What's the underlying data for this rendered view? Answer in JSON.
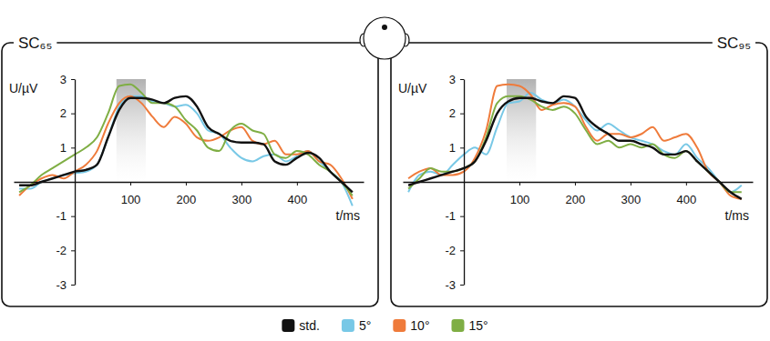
{
  "chart_data": [
    {
      "type": "line",
      "title": "SC₆₅",
      "x_label": "t/ms",
      "y_label": "U/µV",
      "legend": "bottom",
      "xlim": [
        -110,
        520
      ],
      "xticks": [
        100,
        200,
        300,
        400
      ],
      "ylim": [
        -3,
        3
      ],
      "yticks": [
        -3,
        -2,
        -1,
        1,
        2,
        3
      ],
      "highlight": [
        75,
        128
      ],
      "x": [
        -100,
        -80,
        -60,
        -40,
        -20,
        0,
        20,
        40,
        60,
        80,
        100,
        120,
        140,
        160,
        180,
        200,
        220,
        240,
        260,
        280,
        300,
        320,
        340,
        360,
        380,
        400,
        420,
        440,
        460,
        480,
        500
      ],
      "series": [
        {
          "name": "std.",
          "color": "#111111",
          "values": [
            -0.1,
            -0.1,
            0.0,
            0.1,
            0.2,
            0.3,
            0.35,
            0.5,
            1.3,
            2.1,
            2.45,
            2.45,
            2.4,
            2.3,
            2.45,
            2.5,
            2.2,
            1.6,
            1.4,
            1.2,
            1.15,
            1.15,
            1.1,
            0.6,
            0.5,
            0.7,
            0.85,
            0.7,
            0.3,
            0.0,
            -0.3
          ]
        },
        {
          "name": "5°",
          "color": "#78c8e6",
          "values": [
            -0.2,
            -0.2,
            0.0,
            0.1,
            0.2,
            0.25,
            0.3,
            0.5,
            1.3,
            2.2,
            2.5,
            2.5,
            2.35,
            2.3,
            2.2,
            2.25,
            2.0,
            1.5,
            1.4,
            1.0,
            0.7,
            0.6,
            0.75,
            0.8,
            0.6,
            0.75,
            0.9,
            0.6,
            0.3,
            0.0,
            -0.7
          ]
        },
        {
          "name": "10°",
          "color": "#ef7b3b",
          "values": [
            -0.4,
            -0.1,
            0.1,
            0.2,
            0.1,
            0.3,
            0.5,
            0.9,
            1.7,
            2.3,
            2.5,
            2.3,
            1.9,
            1.6,
            1.9,
            1.7,
            1.3,
            1.2,
            1.3,
            1.5,
            1.6,
            1.2,
            1.1,
            1.2,
            0.8,
            0.8,
            0.9,
            0.6,
            0.5,
            0.1,
            -0.5
          ]
        },
        {
          "name": "15°",
          "color": "#7fae44",
          "values": [
            -0.3,
            -0.1,
            0.2,
            0.4,
            0.6,
            0.8,
            1.0,
            1.3,
            2.0,
            2.8,
            2.85,
            2.6,
            2.3,
            2.3,
            2.2,
            1.8,
            1.5,
            1.0,
            0.9,
            1.5,
            1.7,
            1.5,
            1.4,
            0.8,
            0.7,
            0.9,
            0.8,
            0.5,
            0.3,
            0.0,
            -0.4
          ]
        }
      ]
    },
    {
      "type": "line",
      "title": "SC₉₅",
      "x_label": "t/ms",
      "y_label": "U/µV",
      "xlim": [
        -110,
        520
      ],
      "xticks": [
        100,
        200,
        300,
        400
      ],
      "ylim": [
        -3,
        3
      ],
      "yticks": [
        -3,
        -2,
        -1,
        1,
        2,
        3
      ],
      "highlight": [
        77,
        130
      ],
      "x": [
        -100,
        -80,
        -60,
        -40,
        -20,
        0,
        20,
        40,
        60,
        80,
        100,
        120,
        140,
        160,
        180,
        200,
        220,
        240,
        260,
        280,
        300,
        320,
        340,
        360,
        380,
        400,
        420,
        440,
        460,
        480,
        500
      ],
      "series": [
        {
          "color": "#111111",
          "values": [
            -0.1,
            0.0,
            0.1,
            0.2,
            0.3,
            0.4,
            0.6,
            1.2,
            2.0,
            2.35,
            2.45,
            2.45,
            2.35,
            2.3,
            2.5,
            2.45,
            1.9,
            1.6,
            1.4,
            1.2,
            1.2,
            1.1,
            1.0,
            0.8,
            0.8,
            0.9,
            0.6,
            0.3,
            0.0,
            -0.3,
            -0.5
          ]
        },
        {
          "color": "#78c8e6",
          "values": [
            -0.3,
            0.2,
            0.3,
            0.2,
            0.5,
            0.8,
            1.0,
            0.8,
            1.6,
            2.3,
            2.35,
            2.6,
            2.4,
            2.3,
            2.4,
            2.2,
            1.8,
            1.5,
            1.7,
            1.5,
            1.3,
            1.2,
            1.1,
            0.9,
            0.8,
            1.1,
            0.7,
            0.4,
            0.0,
            -0.3,
            -0.1
          ]
        },
        {
          "color": "#ef7b3b",
          "values": [
            0.1,
            0.3,
            0.4,
            0.2,
            0.2,
            0.3,
            0.7,
            1.5,
            2.8,
            2.85,
            2.8,
            2.55,
            2.1,
            2.25,
            2.3,
            2.2,
            1.6,
            1.2,
            1.4,
            1.4,
            1.3,
            1.4,
            1.6,
            1.2,
            1.3,
            1.4,
            1.0,
            0.3,
            0.0,
            -0.4,
            -0.5
          ]
        },
        {
          "color": "#7fae44",
          "values": [
            -0.2,
            0.1,
            0.4,
            0.3,
            0.3,
            0.4,
            0.6,
            1.3,
            2.3,
            2.5,
            2.5,
            2.4,
            2.2,
            2.1,
            2.2,
            2.0,
            1.5,
            1.1,
            1.2,
            1.0,
            1.1,
            1.0,
            1.1,
            0.8,
            0.7,
            0.9,
            0.6,
            0.3,
            0.0,
            -0.3,
            -0.3
          ]
        }
      ]
    }
  ]
}
